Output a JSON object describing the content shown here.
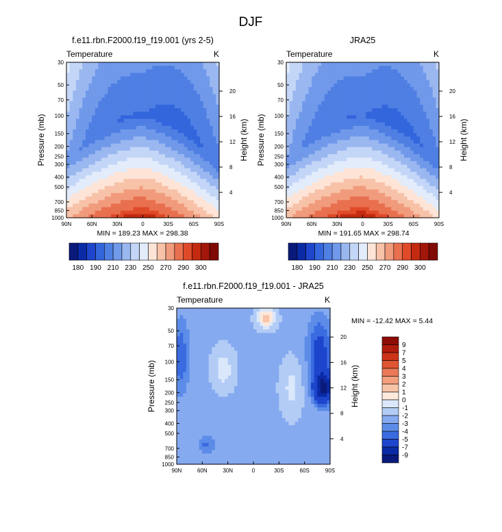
{
  "figure_title": "DJF",
  "ticks": {
    "pressure": [
      "30",
      "50",
      "70",
      "100",
      "150",
      "200",
      "250",
      "300",
      "400",
      "500",
      "700",
      "850",
      "1000"
    ],
    "height": [
      "20",
      "16",
      "12",
      "8",
      "4"
    ],
    "lat": [
      "90N",
      "60N",
      "30N",
      "0",
      "30S",
      "60S",
      "90S"
    ],
    "pressure_label": "Pressure (mb)",
    "height_label": "Height (km)"
  },
  "colors": {
    "abs_levels": [
      "#0a1a7a",
      "#0b2aa6",
      "#1e46cc",
      "#3366dd",
      "#4f7fe3",
      "#7099ea",
      "#9ab7f0",
      "#c4d6f7",
      "#e2ecfb",
      "#fde4d6",
      "#f7c2a8",
      "#f19b7d",
      "#e9704f",
      "#df4a29",
      "#c42a10",
      "#a3160a",
      "#800a05"
    ],
    "diff_levels": [
      "#0a1a7a",
      "#0b2aa6",
      "#1d45cc",
      "#3a6be0",
      "#5c8ce8",
      "#86aaf0",
      "#b2ccf6",
      "#dbe8fb",
      "#fde8dc",
      "#f8c4a8",
      "#f2a07e",
      "#ea7a57",
      "#e05533",
      "#cc3418",
      "#b01c0c",
      "#8e0c06"
    ]
  },
  "panels": [
    {
      "title": "f.e11.rbn.F2000.f19_f19.001 (yrs 2-5)",
      "left_label": "Temperature",
      "right_label": "K",
      "min_max": "MIN = 189.23   MAX = 298.38",
      "colorbar_labels": [
        "180",
        "190",
        "210",
        "230",
        "250",
        "270",
        "290",
        "300"
      ]
    },
    {
      "title": "JRA25",
      "left_label": "Temperature",
      "right_label": "K",
      "min_max": "MIN = 191.65   MAX = 298.74",
      "colorbar_labels": [
        "180",
        "190",
        "210",
        "230",
        "250",
        "270",
        "290",
        "300"
      ]
    },
    {
      "title": "f.e11.rbn.F2000.f19_f19.001 - JRA25",
      "left_label": "Temperature",
      "right_label": "K",
      "min_max": "MIN = -12.42   MAX =   5.44",
      "colorbar_labels": [
        "9",
        "7",
        "5",
        "4",
        "3",
        "2",
        "1",
        "0",
        "-1",
        "-2",
        "-3",
        "-4",
        "-5",
        "-7",
        "-9"
      ]
    }
  ],
  "chart_data": [
    {
      "type": "heatmap",
      "title": "f.e11.rbn.F2000.f19_f19.001 (yrs 2-5)",
      "variable": "Temperature",
      "units": "K",
      "xlabel": "",
      "ylabel": "Pressure (mb)",
      "ylabel_right": "Height (km)",
      "x_ticks": [
        "90N",
        "60N",
        "30N",
        "0",
        "30S",
        "60S",
        "90S"
      ],
      "y_ticks": [
        30,
        50,
        70,
        100,
        150,
        200,
        250,
        300,
        400,
        500,
        700,
        850,
        1000
      ],
      "levels": [
        180,
        185,
        190,
        200,
        210,
        220,
        230,
        240,
        250,
        260,
        270,
        280,
        290,
        295,
        300
      ],
      "min": 189.23,
      "max": 298.38
    },
    {
      "type": "heatmap",
      "title": "JRA25",
      "variable": "Temperature",
      "units": "K",
      "xlabel": "",
      "ylabel": "Pressure (mb)",
      "ylabel_right": "Height (km)",
      "x_ticks": [
        "90N",
        "60N",
        "30N",
        "0",
        "30S",
        "60S",
        "90S"
      ],
      "y_ticks": [
        30,
        50,
        70,
        100,
        150,
        200,
        250,
        300,
        400,
        500,
        700,
        850,
        1000
      ],
      "levels": [
        180,
        185,
        190,
        200,
        210,
        220,
        230,
        240,
        250,
        260,
        270,
        280,
        290,
        295,
        300
      ],
      "min": 191.65,
      "max": 298.74
    },
    {
      "type": "heatmap",
      "title": "f.e11.rbn.F2000.f19_f19.001 - JRA25",
      "variable": "Temperature",
      "units": "K",
      "xlabel": "",
      "ylabel": "Pressure (mb)",
      "ylabel_right": "Height (km)",
      "x_ticks": [
        "90N",
        "60N",
        "30N",
        "0",
        "30S",
        "60S",
        "90S"
      ],
      "y_ticks": [
        30,
        50,
        70,
        100,
        150,
        200,
        250,
        300,
        400,
        500,
        700,
        850,
        1000
      ],
      "levels": [
        -9,
        -7,
        -5,
        -4,
        -3,
        -2,
        -1,
        0,
        1,
        2,
        3,
        4,
        5,
        7,
        9
      ],
      "min": -12.42,
      "max": 5.44
    }
  ]
}
